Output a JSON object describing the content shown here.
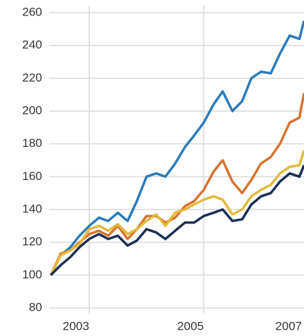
{
  "chart_data": {
    "type": "line",
    "x": [
      2002.33,
      2002.5,
      2002.67,
      2002.83,
      2003,
      2003.17,
      2003.33,
      2003.5,
      2003.67,
      2003.83,
      2004,
      2004.17,
      2004.33,
      2004.5,
      2004.67,
      2004.83,
      2005,
      2005.17,
      2005.33,
      2005.5,
      2005.67,
      2005.83,
      2006,
      2006.17,
      2006.33,
      2006.5,
      2006.67,
      2006.75
    ],
    "series": [
      {
        "color": "#2b7bba",
        "values": [
          100,
          112,
          117,
          124,
          130,
          135,
          133,
          138,
          133,
          145,
          160,
          162,
          160,
          168,
          178,
          185,
          193,
          204,
          212,
          200,
          206,
          220,
          224,
          223,
          235,
          246,
          244,
          255
        ]
      },
      {
        "color": "#d8732f",
        "values": [
          100,
          113,
          115,
          120,
          125,
          127,
          124,
          130,
          122,
          128,
          136,
          136,
          132,
          135,
          142,
          145,
          152,
          163,
          170,
          157,
          150,
          158,
          168,
          172,
          180,
          193,
          196,
          211
        ]
      },
      {
        "color": "#e3b93a",
        "values": [
          100,
          112,
          115,
          119,
          128,
          130,
          127,
          131,
          125,
          128,
          133,
          137,
          130,
          138,
          140,
          143,
          146,
          148,
          146,
          137,
          140,
          148,
          152,
          155,
          162,
          166,
          167,
          176
        ]
      },
      {
        "color": "#1b2f52",
        "values": [
          100,
          106,
          111,
          117,
          122,
          125,
          122,
          124,
          118,
          121,
          128,
          126,
          122,
          127,
          132,
          132,
          136,
          138,
          140,
          133,
          134,
          143,
          148,
          150,
          157,
          162,
          160,
          167
        ]
      }
    ],
    "xlim": [
      2002.3,
      2006.75
    ],
    "xticks": [
      2003,
      2005,
      2007
    ],
    "ylim": [
      80,
      260
    ],
    "yticks": [
      80,
      100,
      120,
      140,
      160,
      180,
      200,
      220,
      240,
      260
    ],
    "grid": true
  }
}
